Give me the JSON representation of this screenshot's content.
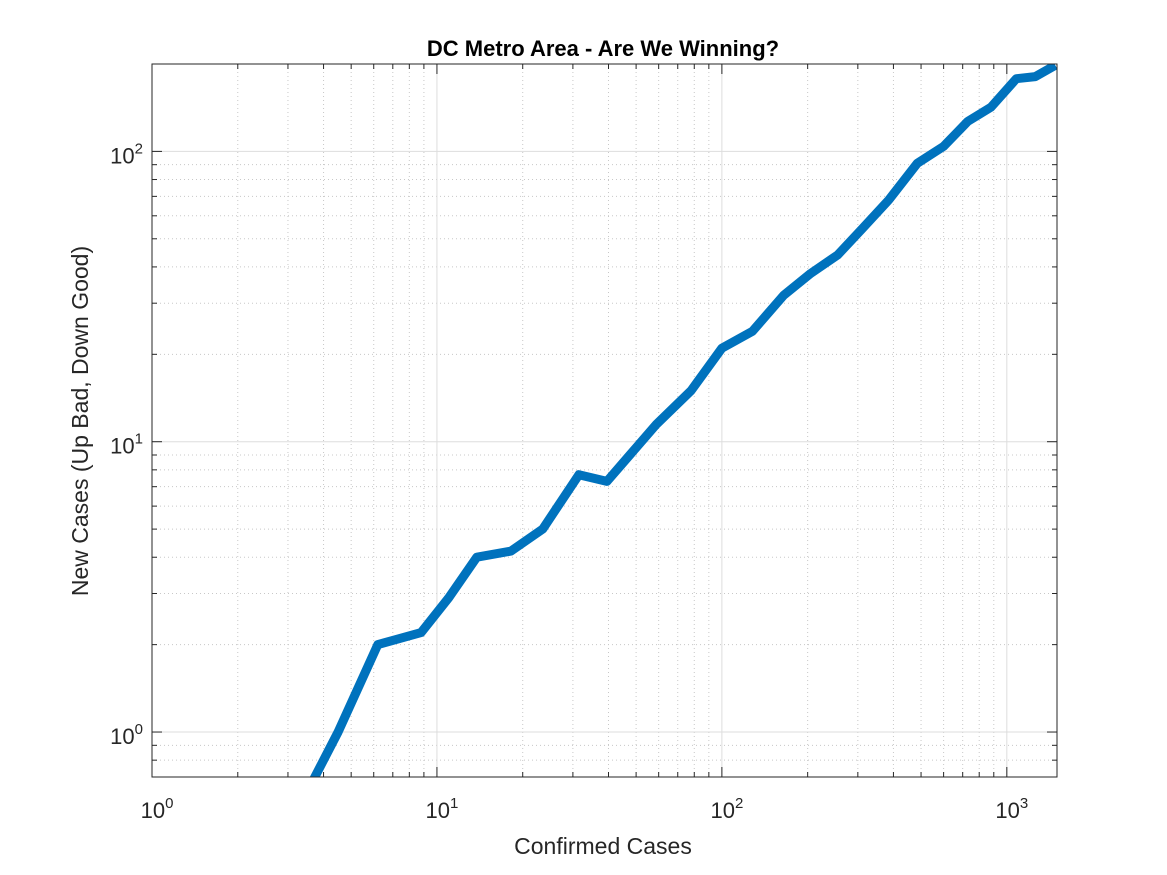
{
  "chart_data": {
    "type": "line",
    "title": "DC Metro Area - Are We Winning?",
    "xlabel": "Confirmed Cases",
    "ylabel": "New Cases (Up Bad, Down Good)",
    "xscale": "log",
    "yscale": "log",
    "xlim": [
      1,
      1500
    ],
    "ylim": [
      0.7,
      200
    ],
    "grid": "on (major and minor)",
    "x_ticks": [
      {
        "base": "10",
        "exp": "0",
        "value": 1
      },
      {
        "base": "10",
        "exp": "1",
        "value": 10
      },
      {
        "base": "10",
        "exp": "2",
        "value": 100
      },
      {
        "base": "10",
        "exp": "3",
        "value": 1000
      }
    ],
    "y_ticks": [
      {
        "base": "10",
        "exp": "0",
        "value": 1
      },
      {
        "base": "10",
        "exp": "1",
        "value": 10
      },
      {
        "base": "10",
        "exp": "2",
        "value": 100
      }
    ],
    "series": [
      {
        "color": "#0072BD",
        "x": [
          3.7,
          4.5,
          6.2,
          8.8,
          11,
          13.8,
          18.2,
          23.5,
          31.5,
          39.5,
          47.5,
          59,
          78,
          100,
          128,
          165,
          205,
          255,
          310,
          385,
          485,
          600,
          730,
          880,
          1080,
          1260,
          1480
        ],
        "y": [
          0.69,
          1.0,
          2.0,
          2.2,
          2.9,
          4.0,
          4.2,
          5.0,
          7.7,
          7.3,
          9.0,
          11.5,
          15.0,
          21.0,
          24.0,
          32.0,
          38.0,
          44.0,
          54.0,
          68.0,
          91.0,
          104.0,
          127.0,
          142.0,
          178.0,
          181.0,
          198.0
        ]
      }
    ]
  }
}
